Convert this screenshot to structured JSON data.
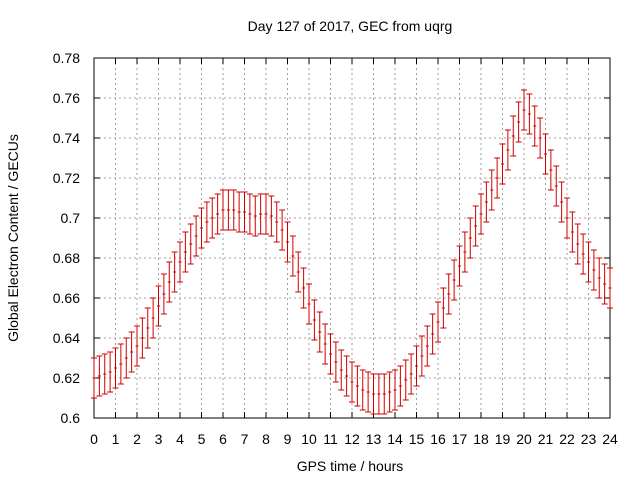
{
  "chart_data": {
    "type": "scatter",
    "title": "Day 127 of 2017, GEC from uqrg",
    "xlabel": "GPS time / hours",
    "ylabel": "Global Electron Content / GECUs",
    "xlim": [
      0,
      24
    ],
    "ylim": [
      0.6,
      0.78
    ],
    "x_ticks": [
      "0",
      "1",
      "2",
      "3",
      "4",
      "5",
      "6",
      "7",
      "8",
      "9",
      "10",
      "11",
      "12",
      "13",
      "14",
      "15",
      "16",
      "17",
      "18",
      "19",
      "20",
      "21",
      "22",
      "23",
      "24"
    ],
    "y_ticks": [
      "0.6",
      "0.62",
      "0.64",
      "0.66",
      "0.68",
      "0.7",
      "0.72",
      "0.74",
      "0.76",
      "0.78"
    ],
    "grid": true,
    "color": "#cc0000",
    "error": 0.01,
    "x": [
      0,
      0.25,
      0.5,
      0.75,
      1,
      1.25,
      1.5,
      1.75,
      2,
      2.25,
      2.5,
      2.75,
      3,
      3.25,
      3.5,
      3.75,
      4,
      4.25,
      4.5,
      4.75,
      5,
      5.25,
      5.5,
      5.75,
      6,
      6.25,
      6.5,
      6.75,
      7,
      7.25,
      7.5,
      7.75,
      8,
      8.25,
      8.5,
      8.75,
      9,
      9.25,
      9.5,
      9.75,
      10,
      10.25,
      10.5,
      10.75,
      11,
      11.25,
      11.5,
      11.75,
      12,
      12.25,
      12.5,
      12.75,
      13,
      13.25,
      13.5,
      13.75,
      14,
      14.25,
      14.5,
      14.75,
      15,
      15.25,
      15.5,
      15.75,
      16,
      16.25,
      16.5,
      16.75,
      17,
      17.25,
      17.5,
      17.75,
      18,
      18.25,
      18.5,
      18.75,
      19,
      19.25,
      19.5,
      19.75,
      20,
      20.25,
      20.5,
      20.75,
      21,
      21.25,
      21.5,
      21.75,
      22,
      22.25,
      22.5,
      22.75,
      23,
      23.25,
      23.5,
      23.75,
      24
    ],
    "y": [
      0.62,
      0.621,
      0.622,
      0.623,
      0.625,
      0.627,
      0.63,
      0.633,
      0.636,
      0.64,
      0.645,
      0.65,
      0.656,
      0.662,
      0.668,
      0.673,
      0.678,
      0.683,
      0.687,
      0.691,
      0.695,
      0.698,
      0.7,
      0.702,
      0.704,
      0.704,
      0.704,
      0.703,
      0.703,
      0.702,
      0.701,
      0.702,
      0.702,
      0.701,
      0.698,
      0.694,
      0.688,
      0.681,
      0.673,
      0.665,
      0.657,
      0.649,
      0.643,
      0.637,
      0.632,
      0.628,
      0.624,
      0.621,
      0.618,
      0.616,
      0.614,
      0.613,
      0.612,
      0.612,
      0.612,
      0.613,
      0.614,
      0.616,
      0.619,
      0.622,
      0.626,
      0.631,
      0.636,
      0.642,
      0.648,
      0.655,
      0.662,
      0.669,
      0.676,
      0.683,
      0.69,
      0.696,
      0.702,
      0.708,
      0.714,
      0.72,
      0.727,
      0.734,
      0.741,
      0.748,
      0.754,
      0.752,
      0.746,
      0.74,
      0.732,
      0.724,
      0.716,
      0.708,
      0.7,
      0.693,
      0.687,
      0.682,
      0.678,
      0.674,
      0.67,
      0.667,
      0.665
    ]
  }
}
